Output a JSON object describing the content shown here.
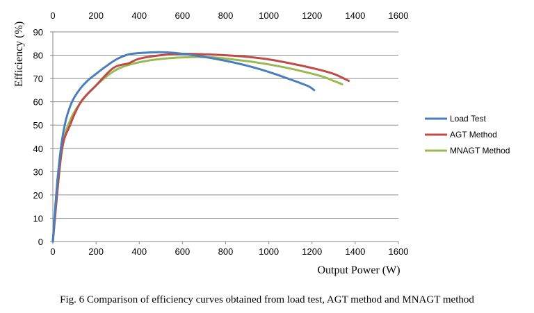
{
  "chart_data": {
    "type": "line",
    "title": "",
    "xlabel": "Output Power (W)",
    "ylabel": "Efficiency (%)",
    "xlim": [
      0,
      1600
    ],
    "ylim": [
      0,
      90
    ],
    "x_ticks": [
      "0",
      "200",
      "400",
      "600",
      "800",
      "1000",
      "1200",
      "1400",
      "1600"
    ],
    "x_ticks_top": [
      "0",
      "200",
      "400",
      "600",
      "800",
      "1000",
      "1200",
      "1400",
      "1600"
    ],
    "y_ticks": [
      "0",
      "10",
      "20",
      "30",
      "40",
      "50",
      "60",
      "70",
      "80",
      "90"
    ],
    "grid": "horizontal",
    "legend_position": "right",
    "series": [
      {
        "name": "Load Test",
        "color": "#4a7ebb",
        "x": [
          0,
          20,
          40,
          60,
          80,
          100,
          130,
          160,
          200,
          250,
          300,
          350,
          400,
          450,
          500,
          550,
          600,
          700,
          800,
          900,
          1000,
          1100,
          1180,
          1210
        ],
        "y": [
          0,
          25,
          42,
          52,
          58,
          62,
          66,
          69,
          72,
          75.5,
          78.5,
          80.3,
          80.9,
          81.2,
          81.3,
          81.1,
          80.6,
          79.3,
          77.6,
          75.5,
          72.8,
          69.6,
          66.8,
          65
        ]
      },
      {
        "name": "AGT Method",
        "color": "#be4b48",
        "x": [
          0,
          40,
          80,
          130,
          200,
          280,
          350,
          400,
          500,
          600,
          700,
          800,
          900,
          1000,
          1100,
          1200,
          1300,
          1370
        ],
        "y": [
          0,
          38,
          50,
          60,
          67,
          74.5,
          76.5,
          78.5,
          80,
          80.6,
          80.4,
          80,
          79.3,
          78.2,
          76.5,
          74.5,
          72,
          69
        ]
      },
      {
        "name": "MNAGT Method",
        "color": "#98b954",
        "x": [
          0,
          40,
          80,
          140,
          200,
          280,
          350,
          450,
          550,
          650,
          750,
          850,
          950,
          1050,
          1150,
          1250,
          1300,
          1340
        ],
        "y": [
          0,
          38,
          52,
          61,
          67,
          73,
          75.8,
          77.8,
          78.8,
          79.2,
          79,
          78,
          76.8,
          75.2,
          73.2,
          70.8,
          69,
          67.5
        ]
      }
    ]
  },
  "caption": "Fig. 6 Comparison of efficiency curves obtained from load test, AGT method and MNAGT method"
}
